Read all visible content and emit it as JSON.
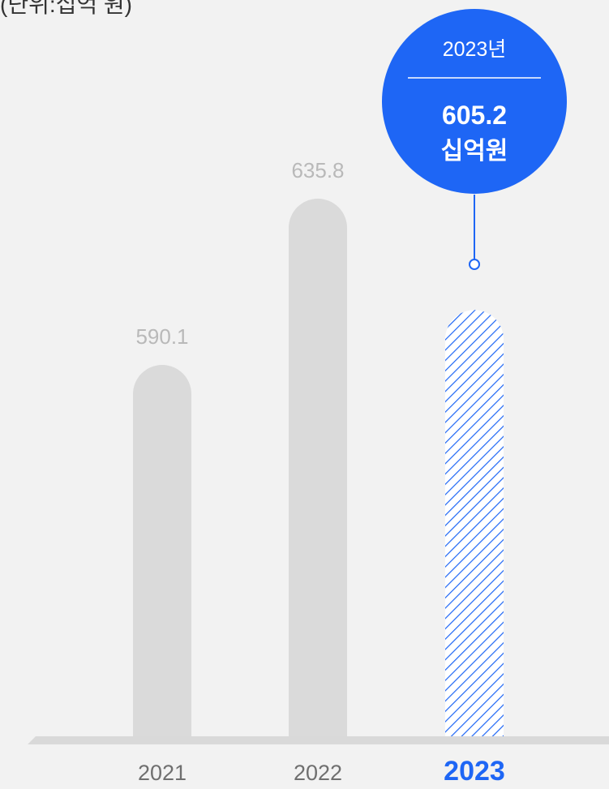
{
  "unit_label": "(단위:십억 원)",
  "colors": {
    "background": "#f2f2f2",
    "bar": "#dadada",
    "label": "#b9b9b9",
    "accent": "#1e66f5",
    "baseline": "#d9d9d9"
  },
  "chart_data": {
    "type": "bar",
    "categories": [
      "2021",
      "2022",
      "2023"
    ],
    "values": [
      590.1,
      635.8,
      605.2
    ],
    "value_labels": [
      "590.1",
      "635.8",
      ""
    ],
    "highlight_index": 2,
    "highlight_pattern": "diagonal-hatch",
    "callout": {
      "year": "2023년",
      "value": "605.2",
      "unit": "십억원"
    }
  }
}
